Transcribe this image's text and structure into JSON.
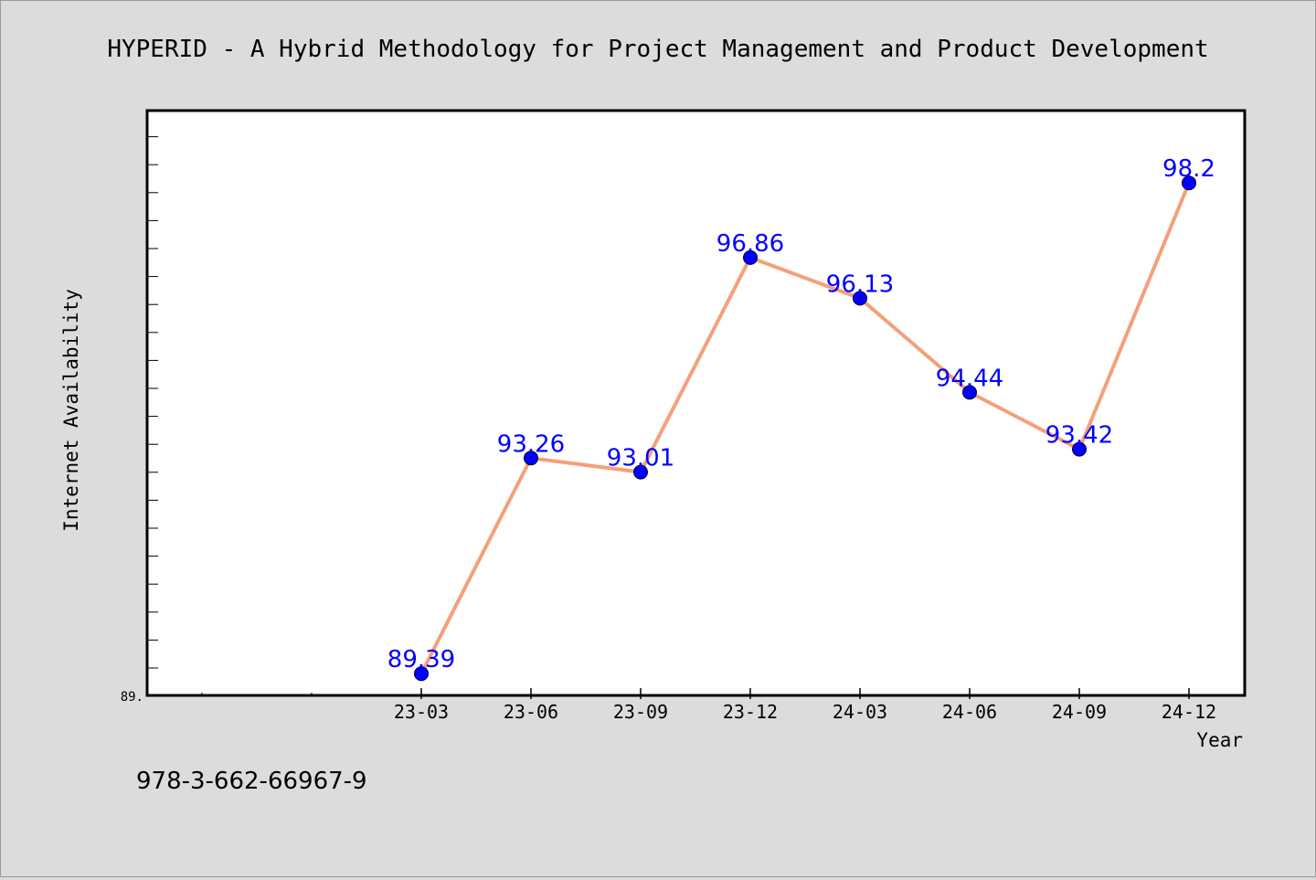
{
  "chart_data": {
    "type": "line",
    "title": "HYPERID - A Hybrid Methodology for Project Management and Product Development",
    "xlabel": "Year",
    "ylabel": "Internet Availability",
    "categories": [
      "23-03",
      "23-06",
      "23-09",
      "23-12",
      "24-03",
      "24-06",
      "24-09",
      "24-12"
    ],
    "series": [
      {
        "values": [
          89.39,
          93.26,
          93.01,
          96.86,
          96.13,
          94.44,
          93.42,
          98.2
        ],
        "labels": [
          "89.39",
          "93.26",
          "93.01",
          "96.86",
          "96.13",
          "94.44",
          "93.42",
          "98.2"
        ]
      }
    ],
    "ytick_label": "89.",
    "ylim": [
      89.0,
      99.5
    ],
    "grid": false,
    "line_color": "#f4a07a",
    "marker_color": "#0000ff",
    "label_color": "#0000ff"
  },
  "footer_text": "978-3-662-66967-9"
}
